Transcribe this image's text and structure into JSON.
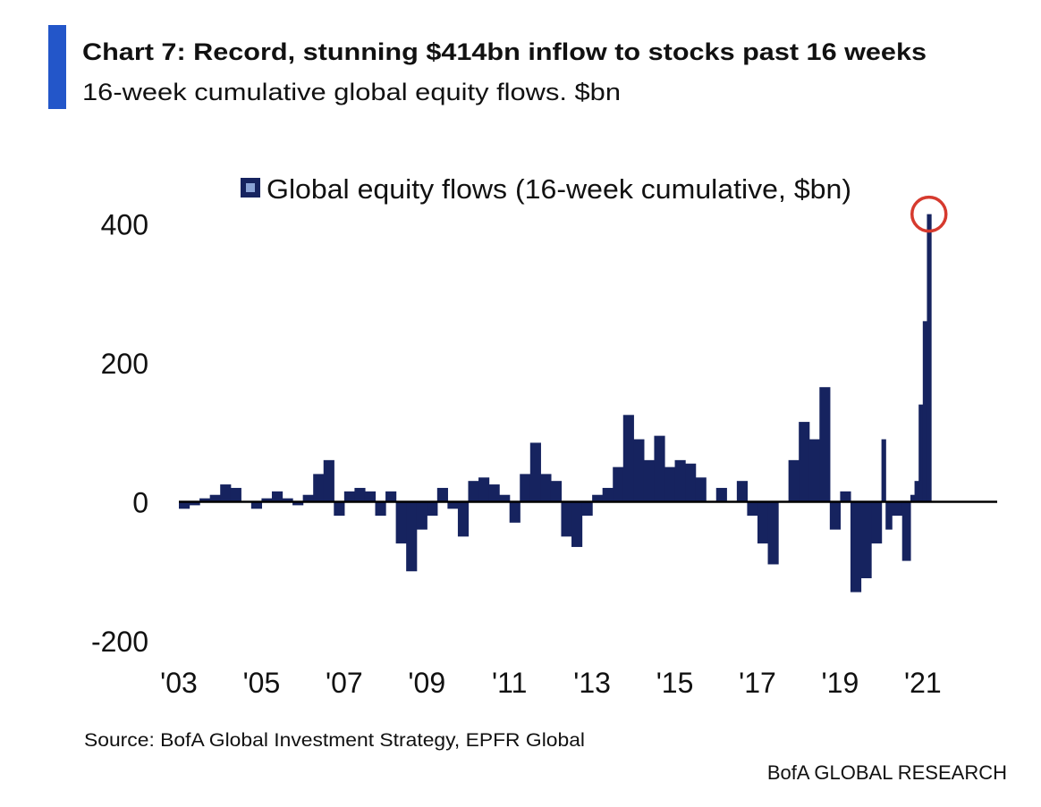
{
  "chart_data": {
    "type": "bar",
    "title": "Chart 7: Record, stunning $414bn inflow to stocks past 16 weeks",
    "subtitle": "16-week cumulative global equity flows. $bn",
    "source": "Source:  BofA Global Investment Strategy, EPFR Global",
    "brand": "BofA GLOBAL RESEARCH",
    "x": [
      2003,
      2003.25,
      2003.5,
      2003.75,
      2004,
      2004.25,
      2004.5,
      2004.75,
      2005,
      2005.25,
      2005.5,
      2005.75,
      2006,
      2006.25,
      2006.5,
      2006.75,
      2007,
      2007.25,
      2007.5,
      2007.75,
      2008,
      2008.25,
      2008.5,
      2008.75,
      2009,
      2009.25,
      2009.5,
      2009.75,
      2010,
      2010.25,
      2010.5,
      2010.75,
      2011,
      2011.25,
      2011.5,
      2011.75,
      2012,
      2012.25,
      2012.5,
      2012.75,
      2013,
      2013.25,
      2013.5,
      2013.75,
      2014,
      2014.25,
      2014.5,
      2014.75,
      2015,
      2015.25,
      2015.5,
      2015.75,
      2016,
      2016.25,
      2016.5,
      2016.75,
      2017,
      2017.25,
      2017.5,
      2017.75,
      2018,
      2018.25,
      2018.5,
      2018.75,
      2019,
      2019.25,
      2019.5,
      2019.75,
      2020,
      2020.1,
      2020.25,
      2020.5,
      2020.7,
      2020.8,
      2020.9,
      2021,
      2021.1
    ],
    "series": [
      {
        "name": "Global equity flows (16-week cumulative, $bn)",
        "color": "#16235f",
        "values": [
          -10,
          -5,
          5,
          10,
          25,
          20,
          0,
          -10,
          5,
          15,
          5,
          -5,
          10,
          40,
          60,
          -20,
          15,
          20,
          15,
          -20,
          15,
          -60,
          -100,
          -40,
          -20,
          20,
          -10,
          -50,
          30,
          35,
          25,
          10,
          -30,
          40,
          85,
          40,
          30,
          -50,
          -65,
          -20,
          10,
          20,
          50,
          125,
          90,
          60,
          95,
          50,
          60,
          55,
          35,
          0,
          20,
          0,
          30,
          -20,
          -60,
          -90,
          0,
          60,
          115,
          90,
          165,
          -40,
          15,
          -130,
          -110,
          -60,
          90,
          -40,
          -20,
          -85,
          10,
          30,
          140,
          260,
          414
        ]
      }
    ],
    "xlim": [
      2003,
      2022.8
    ],
    "xticks": [
      {
        "value": 2003,
        "label": "'03"
      },
      {
        "value": 2005,
        "label": "'05"
      },
      {
        "value": 2007,
        "label": "'07"
      },
      {
        "value": 2009,
        "label": "'09"
      },
      {
        "value": 2011,
        "label": "'11"
      },
      {
        "value": 2013,
        "label": "'13"
      },
      {
        "value": 2015,
        "label": "'15"
      },
      {
        "value": 2017,
        "label": "'17"
      },
      {
        "value": 2019,
        "label": "'19"
      },
      {
        "value": 2021,
        "label": "'21"
      }
    ],
    "ylim": [
      -200,
      420
    ],
    "yticks": [
      -200,
      0,
      200,
      400
    ]
  }
}
